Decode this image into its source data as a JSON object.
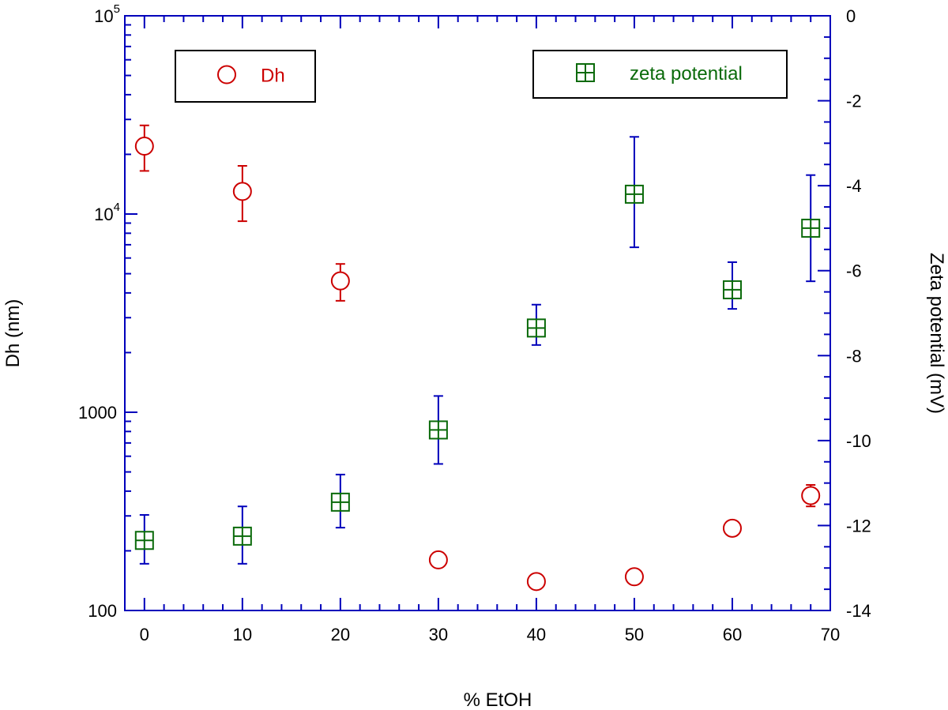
{
  "chart_data": {
    "type": "scatter",
    "xlabel": "% EtOH",
    "ylabel_left": "Dh (nm)",
    "ylabel_right": "Zeta potential (mV)",
    "xlim": [
      -2,
      70
    ],
    "x_ticks": [
      0,
      10,
      20,
      30,
      40,
      50,
      60,
      70
    ],
    "y_left_scale": "log",
    "y_left_lim": [
      100,
      100000
    ],
    "y_left_ticks": [
      {
        "value": 100,
        "label": "100",
        "sup": ""
      },
      {
        "value": 1000,
        "label": "1000",
        "sup": ""
      },
      {
        "value": 10000,
        "label": "10",
        "sup": "4"
      },
      {
        "value": 100000,
        "label": "10",
        "sup": "5"
      }
    ],
    "y_right_lim": [
      -14,
      0
    ],
    "y_right_ticks": [
      0,
      -2,
      -4,
      -6,
      -8,
      -10,
      -12,
      -14
    ],
    "grid": false,
    "series": [
      {
        "name": "Dh",
        "axis": "left",
        "marker": "circle",
        "color": "#cc0000",
        "errorbar_color": "#cc0000",
        "points": [
          {
            "x": 0,
            "y": 22000,
            "lo": 16500,
            "hi": 28000
          },
          {
            "x": 10,
            "y": 13000,
            "lo": 9200,
            "hi": 17500
          },
          {
            "x": 20,
            "y": 4600,
            "lo": 3650,
            "hi": 5600
          },
          {
            "x": 30,
            "y": 180,
            "lo": 170,
            "hi": 190
          },
          {
            "x": 40,
            "y": 140,
            "lo": 132,
            "hi": 148
          },
          {
            "x": 50,
            "y": 148,
            "lo": 140,
            "hi": 156
          },
          {
            "x": 60,
            "y": 260,
            "lo": 245,
            "hi": 275
          },
          {
            "x": 68,
            "y": 380,
            "lo": 335,
            "hi": 430
          }
        ]
      },
      {
        "name": "zeta potential",
        "axis": "right",
        "marker": "square-cross",
        "color": "#0a6a0a",
        "errorbar_color": "#0000bb",
        "points": [
          {
            "x": 0,
            "y": -12.35,
            "lo": -12.9,
            "hi": -11.75
          },
          {
            "x": 10,
            "y": -12.25,
            "lo": -12.9,
            "hi": -11.55
          },
          {
            "x": 20,
            "y": -11.45,
            "lo": -12.05,
            "hi": -10.8
          },
          {
            "x": 30,
            "y": -9.75,
            "lo": -10.55,
            "hi": -8.95
          },
          {
            "x": 40,
            "y": -7.35,
            "lo": -7.75,
            "hi": -6.8
          },
          {
            "x": 50,
            "y": -4.2,
            "lo": -5.45,
            "hi": -2.85
          },
          {
            "x": 60,
            "y": -6.45,
            "lo": -6.9,
            "hi": -5.8
          },
          {
            "x": 68,
            "y": -5.0,
            "lo": -6.25,
            "hi": -3.75
          }
        ]
      }
    ],
    "legends": [
      {
        "series": "Dh",
        "placement": "top-left"
      },
      {
        "series": "zeta potential",
        "placement": "top-right"
      }
    ]
  }
}
